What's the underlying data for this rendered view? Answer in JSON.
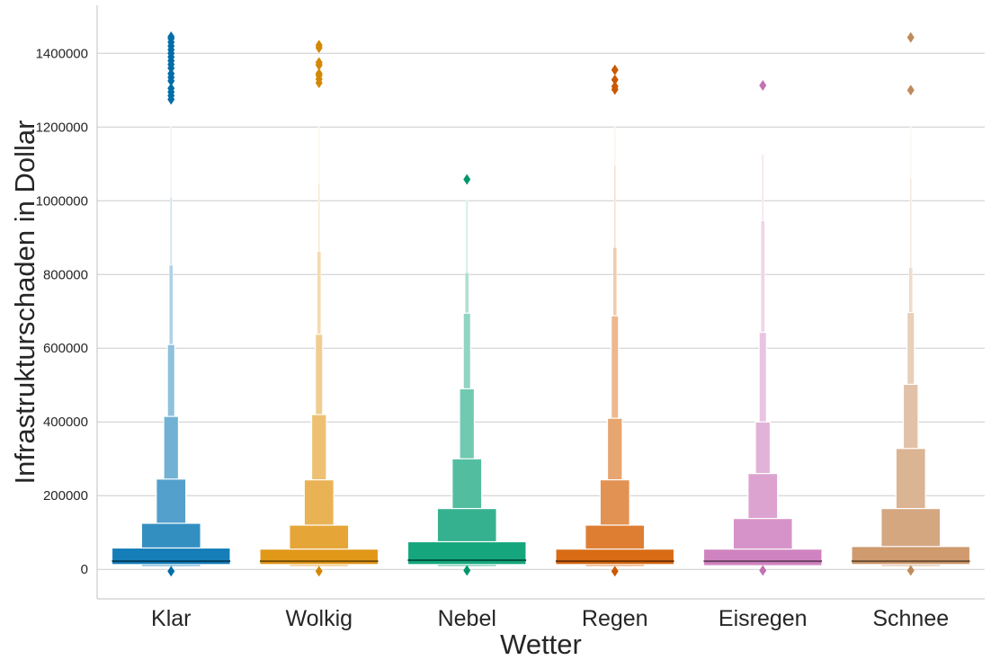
{
  "chart_data": {
    "type": "boxen",
    "title": "",
    "xlabel": "Wetter",
    "ylabel": "Infrastrukturschaden in Dollar",
    "ylim": [
      -80000,
      1530000
    ],
    "yticks": [
      0,
      200000,
      400000,
      600000,
      800000,
      1000000,
      1200000,
      1400000
    ],
    "ytick_labels": [
      "0",
      "200000",
      "400000",
      "600000",
      "800000",
      "1000000",
      "1200000",
      "1400000"
    ],
    "grid": "horizontal",
    "legend": "none",
    "categories": [
      "Klar",
      "Wolkig",
      "Nebel",
      "Regen",
      "Eisregen",
      "Schnee"
    ],
    "series": [
      {
        "color": "#0173b2",
        "median": 22000,
        "boxes": [
          [
            13000,
            58000
          ],
          [
            8000,
            125000
          ],
          [
            5000,
            245000
          ],
          [
            3000,
            415000
          ],
          [
            2000,
            610000
          ],
          [
            1500,
            825000
          ],
          [
            1000,
            1010000
          ],
          [
            500,
            1200000
          ]
        ],
        "outliers": [
          -5000,
          1275000,
          1285000,
          1295000,
          1305000,
          1325000,
          1335000,
          1345000,
          1360000,
          1370000,
          1380000,
          1390000,
          1400000,
          1410000,
          1420000,
          1430000,
          1440000,
          1445000
        ]
      },
      {
        "color": "#de8f05",
        "median": 22000,
        "boxes": [
          [
            13000,
            55000
          ],
          [
            8000,
            120000
          ],
          [
            5000,
            243000
          ],
          [
            3000,
            420000
          ],
          [
            2000,
            638000
          ],
          [
            1500,
            862000
          ],
          [
            1000,
            1045000
          ],
          [
            500,
            1200000
          ]
        ],
        "outliers": [
          -5000,
          1320000,
          1330000,
          1340000,
          1345000,
          1368000,
          1375000,
          1415000,
          1422000
        ]
      },
      {
        "color": "#029e73",
        "median": 25000,
        "boxes": [
          [
            13000,
            75000
          ],
          [
            8000,
            165000
          ],
          [
            5000,
            300000
          ],
          [
            3000,
            490000
          ],
          [
            2000,
            695000
          ],
          [
            1500,
            805000
          ],
          [
            1000,
            1000000
          ]
        ],
        "outliers": [
          -3000,
          1058000
        ]
      },
      {
        "color": "#d55e00",
        "median": 22000,
        "boxes": [
          [
            13000,
            55000
          ],
          [
            8000,
            120000
          ],
          [
            5000,
            243000
          ],
          [
            3000,
            410000
          ],
          [
            2000,
            688000
          ],
          [
            1500,
            873000
          ],
          [
            1000,
            1095000
          ],
          [
            500,
            1200000
          ]
        ],
        "outliers": [
          -5000,
          1302000,
          1310000,
          1328000,
          1355000
        ]
      },
      {
        "color": "#cc78bc",
        "median": 22000,
        "boxes": [
          [
            10000,
            55000
          ],
          [
            8000,
            138000
          ],
          [
            5000,
            260000
          ],
          [
            3000,
            400000
          ],
          [
            2000,
            643000
          ],
          [
            1500,
            945000
          ],
          [
            1000,
            1125000
          ]
        ],
        "outliers": [
          -3000,
          1313000
        ]
      },
      {
        "color": "#ca9161",
        "median": 22000,
        "boxes": [
          [
            13000,
            62000
          ],
          [
            8000,
            165000
          ],
          [
            5000,
            328000
          ],
          [
            3000,
            502000
          ],
          [
            2000,
            697000
          ],
          [
            1500,
            818000
          ],
          [
            1000,
            1060000
          ],
          [
            500,
            1200000
          ]
        ],
        "outliers": [
          -3000,
          1300000,
          1443000
        ]
      }
    ]
  }
}
